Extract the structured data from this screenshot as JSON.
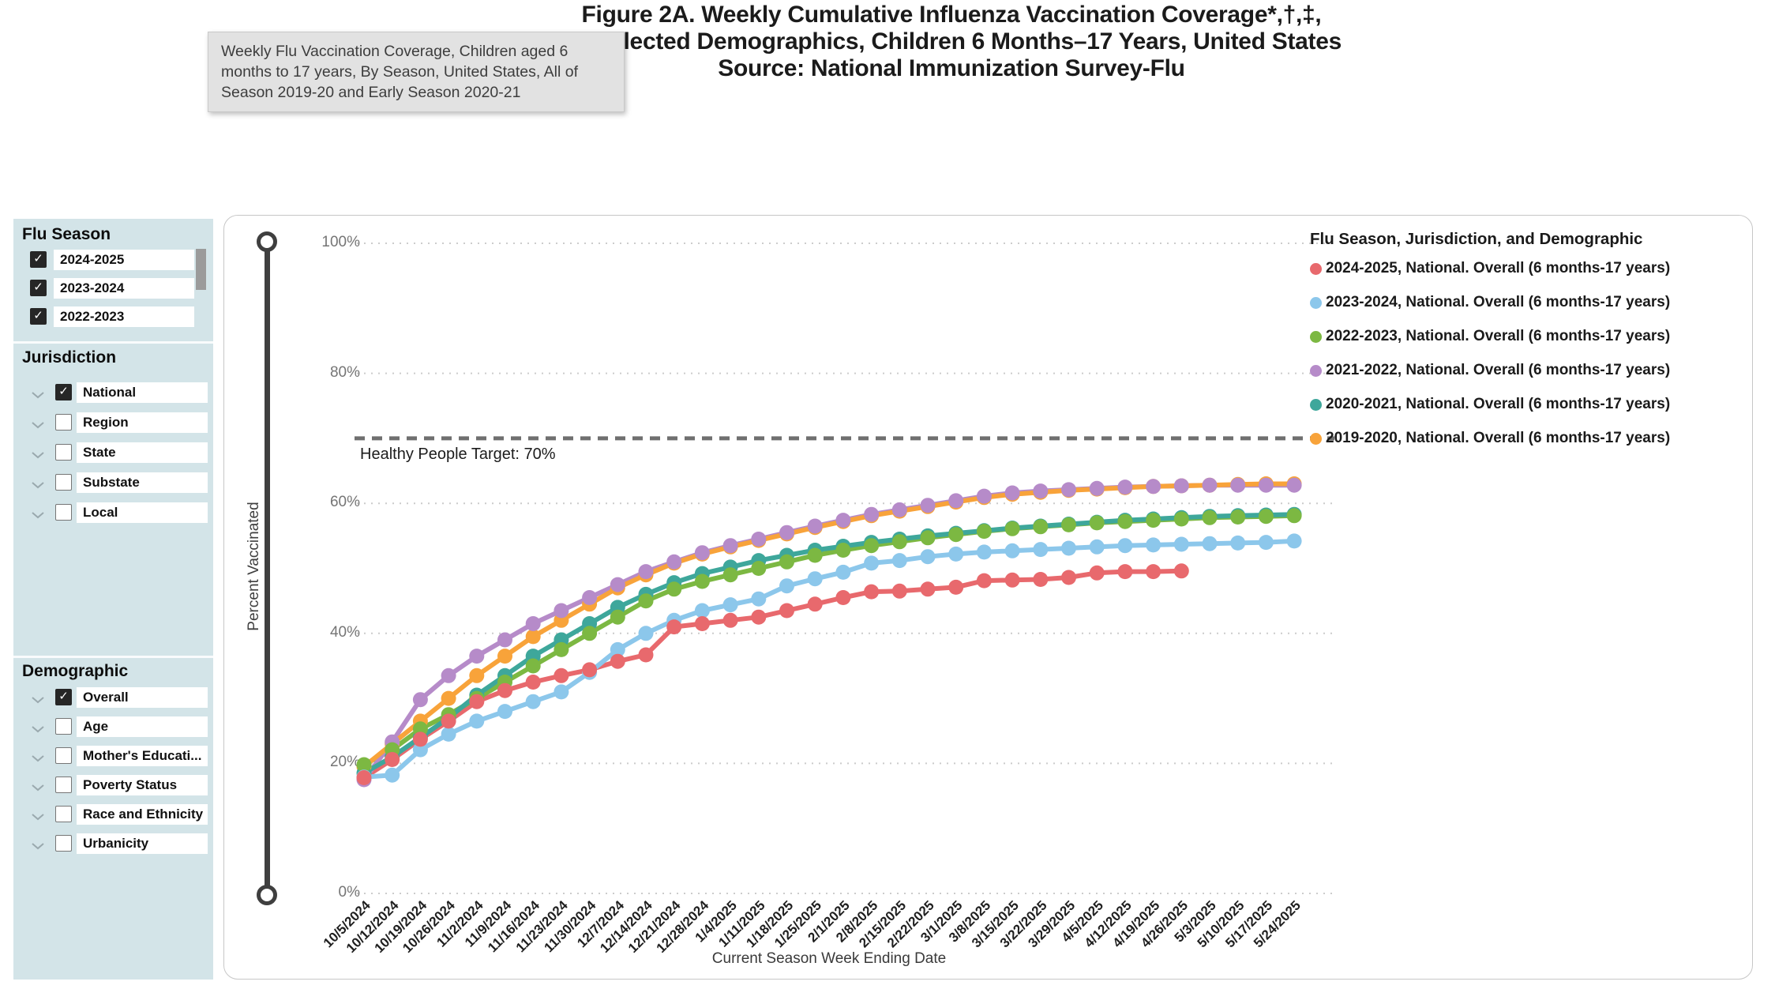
{
  "title": {
    "line1": "Figure 2A. Weekly Cumulative Influenza Vaccination Coverage*,†,‡,",
    "line2": "by Selected Demographics, Children 6 Months–17 Years, United States",
    "line3": "Source: National Immunization Survey-Flu"
  },
  "tooltip": {
    "text": "Weekly Flu Vaccination Coverage, Children aged 6 months to 17 years, By Season, United States, All of Season 2019-20 and Early Season 2020-21"
  },
  "sidebar": {
    "sections": [
      {
        "title": "Flu Season",
        "items": [
          {
            "label": "2024-2025",
            "checked": true
          },
          {
            "label": "2023-2024",
            "checked": true
          },
          {
            "label": "2022-2023",
            "checked": true
          }
        ]
      },
      {
        "title": "Jurisdiction",
        "items": [
          {
            "label": "National",
            "checked": true
          },
          {
            "label": "Region",
            "checked": false
          },
          {
            "label": "State",
            "checked": false
          },
          {
            "label": "Substate",
            "checked": false
          },
          {
            "label": "Local",
            "checked": false
          }
        ]
      },
      {
        "title": "Demographic",
        "items": [
          {
            "label": "Overall",
            "checked": true
          },
          {
            "label": "Age",
            "checked": false
          },
          {
            "label": "Mother's Educati...",
            "checked": false
          },
          {
            "label": "Poverty Status",
            "checked": false
          },
          {
            "label": "Race and Ethnicity",
            "checked": false
          },
          {
            "label": "Urbanicity",
            "checked": false
          }
        ]
      }
    ]
  },
  "chart_data": {
    "type": "line",
    "legend_title": "Flu Season, Jurisdiction, and Demographic",
    "xlabel": "Current Season Week Ending Date",
    "ylabel": "Percent Vaccinated",
    "ylim": [
      0,
      100
    ],
    "y_ticks": [
      "100%",
      "80%",
      "60%",
      "40%",
      "20%",
      "0%"
    ],
    "grid": "dotted horizontal",
    "legend_position": "right-top",
    "target": {
      "label": "Healthy People Target: 70%",
      "value": 70
    },
    "x_categories": [
      "10/5/2024",
      "10/12/2024",
      "10/19/2024",
      "10/26/2024",
      "11/2/2024",
      "11/9/2024",
      "11/16/2024",
      "11/23/2024",
      "11/30/2024",
      "12/7/2024",
      "12/14/2024",
      "12/21/2024",
      "12/28/2024",
      "1/4/2025",
      "1/11/2025",
      "1/18/2025",
      "1/25/2025",
      "2/1/2025",
      "2/8/2025",
      "2/15/2025",
      "2/22/2025",
      "3/1/2025",
      "3/8/2025",
      "3/15/2025",
      "3/22/2025",
      "3/29/2025",
      "4/5/2025",
      "4/12/2025",
      "4/19/2025",
      "4/26/2025",
      "5/3/2025",
      "5/10/2025",
      "5/17/2025",
      "5/24/2025"
    ],
    "series": [
      {
        "name": "2024-2025, National. Overall (6 months-17 years)",
        "color": "#E8696D",
        "values": [
          17.8,
          20.6,
          23.7,
          26.5,
          29.5,
          31.2,
          32.5,
          33.5,
          34.4,
          35.7,
          36.7,
          41.0,
          41.5,
          42.0,
          42.5,
          43.5,
          44.5,
          45.5,
          46.4,
          46.5,
          46.8,
          47.1,
          48.1,
          48.2,
          48.3,
          48.6,
          49.3,
          49.5,
          49.5,
          49.6
        ]
      },
      {
        "name": "2023-2024, National. Overall (6 months-17 years)",
        "color": "#8CC7EB",
        "values": [
          17.9,
          18.2,
          22.1,
          24.5,
          26.5,
          28.0,
          29.5,
          31.0,
          34.0,
          37.5,
          40.0,
          42.0,
          43.5,
          44.4,
          45.3,
          47.3,
          48.4,
          49.4,
          50.8,
          51.2,
          51.8,
          52.2,
          52.5,
          52.7,
          52.9,
          53.1,
          53.3,
          53.5,
          53.6,
          53.7,
          53.8,
          53.9,
          54.0,
          54.2
        ]
      },
      {
        "name": "2022-2023, National. Overall (6 months-17 years)",
        "color": "#7CB842",
        "values": [
          19.8,
          22.1,
          25.3,
          27.5,
          30.0,
          32.5,
          35.0,
          37.5,
          40.0,
          42.5,
          45.0,
          46.8,
          48.0,
          49.0,
          50.0,
          51.0,
          52.0,
          52.8,
          53.5,
          54.1,
          54.7,
          55.2,
          55.7,
          56.1,
          56.4,
          56.7,
          57.0,
          57.2,
          57.4,
          57.6,
          57.8,
          57.9,
          58.0,
          58.1
        ]
      },
      {
        "name": "2021-2022, National. Overall (6 months-17 years)",
        "color": "#B68BC9",
        "values": [
          17.5,
          23.3,
          29.8,
          33.5,
          36.5,
          39.0,
          41.5,
          43.5,
          45.5,
          47.5,
          49.5,
          51.0,
          52.4,
          53.5,
          54.5,
          55.5,
          56.5,
          57.4,
          58.3,
          59.0,
          59.7,
          60.4,
          61.1,
          61.6,
          61.9,
          62.1,
          62.3,
          62.5,
          62.6,
          62.7,
          62.8,
          62.8,
          62.8,
          62.8
        ]
      },
      {
        "name": "2020-2021, National. Overall (6 months-17 years)",
        "color": "#3EA79B",
        "values": [
          18.5,
          21.0,
          24.0,
          27.0,
          30.5,
          33.5,
          36.5,
          39.0,
          41.5,
          44.0,
          46.0,
          47.8,
          49.2,
          50.2,
          51.2,
          52.0,
          52.8,
          53.4,
          54.0,
          54.5,
          55.0,
          55.4,
          55.8,
          56.2,
          56.5,
          56.8,
          57.1,
          57.4,
          57.6,
          57.8,
          58.0,
          58.1,
          58.2,
          58.3
        ]
      },
      {
        "name": "2019-2020, National. Overall (6 months-17 years)",
        "color": "#F8A33A",
        "values": [
          19.5,
          23.0,
          26.5,
          30.0,
          33.5,
          36.5,
          39.5,
          42.0,
          44.5,
          47.0,
          49.0,
          50.8,
          52.2,
          53.3,
          54.3,
          55.3,
          56.3,
          57.2,
          58.1,
          58.8,
          59.5,
          60.2,
          60.9,
          61.4,
          61.7,
          62.0,
          62.2,
          62.4,
          62.6,
          62.7,
          62.8,
          62.9,
          63.0,
          63.0
        ]
      }
    ],
    "line_draw_order": [
      0,
      1,
      2,
      3,
      4,
      5
    ],
    "marker_draw_order": [
      5,
      4,
      3,
      2,
      1,
      0
    ]
  }
}
